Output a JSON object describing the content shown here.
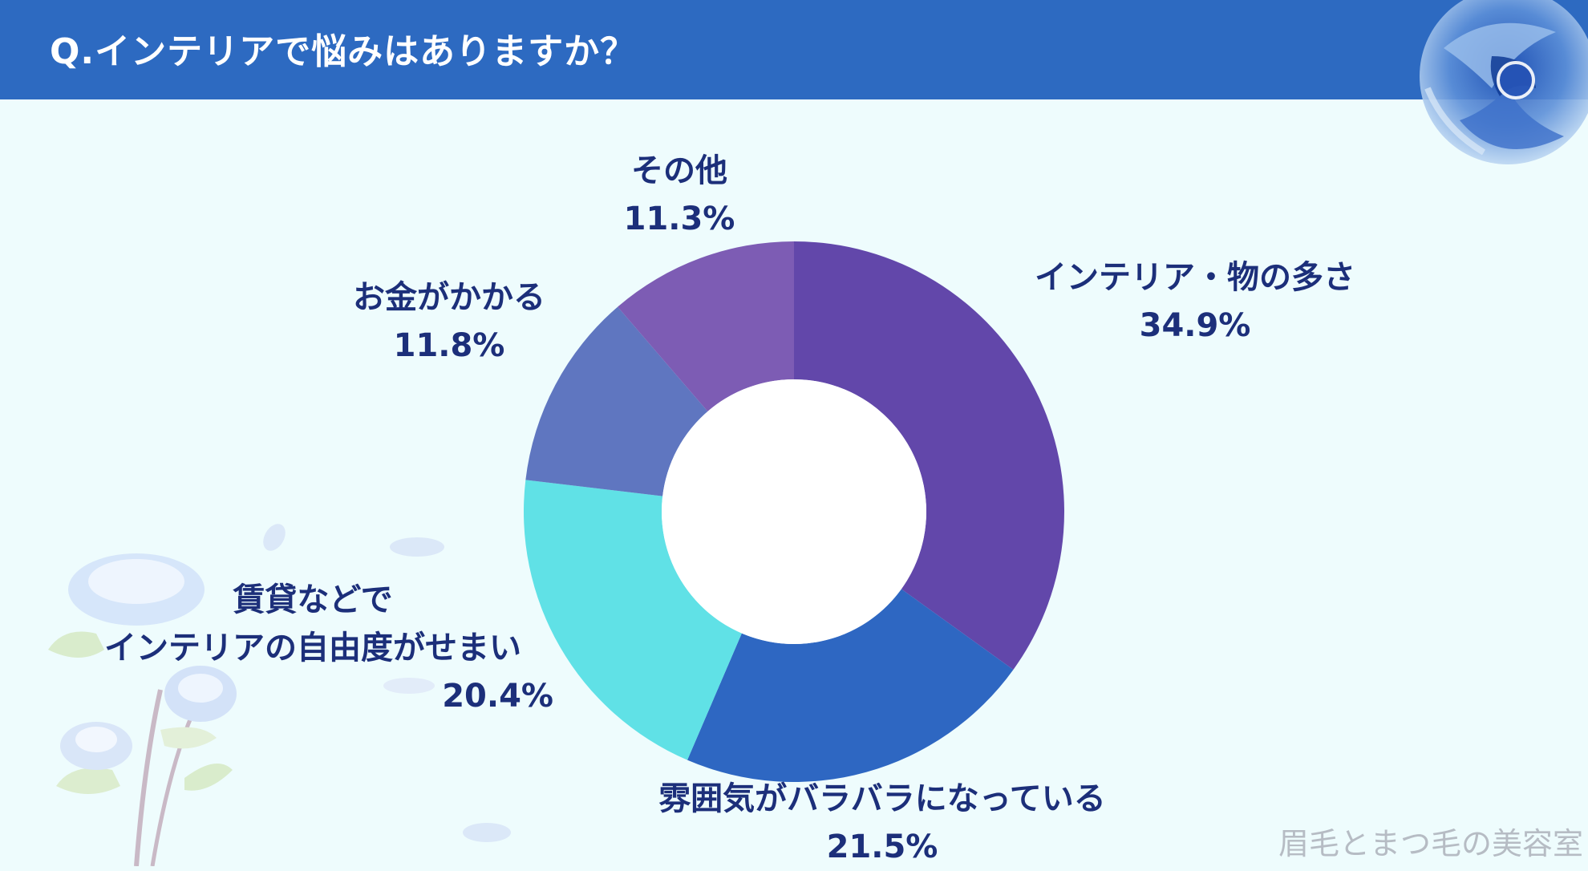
{
  "header": {
    "title": "Q.インテリアで悩みはありますか？"
  },
  "chart_data": {
    "type": "pie",
    "donut": true,
    "legend": "none",
    "categories": [
      "インテリア・物の多さ",
      "雰囲気がバラバラになっている",
      "賃貸などで\nインテリアの自由度がせまい",
      "お金がかかる",
      "その他"
    ],
    "values": [
      34.9,
      21.5,
      20.4,
      11.8,
      11.3
    ],
    "value_labels": [
      "34.9%",
      "21.5%",
      "20.4%",
      "11.8%",
      "11.3%"
    ],
    "colors": [
      "#6247aa",
      "#2e67c2",
      "#60e1e6",
      "#5f76c0",
      "#7d5cb4"
    ]
  },
  "watermark": "眉毛とまつ毛の美容室"
}
